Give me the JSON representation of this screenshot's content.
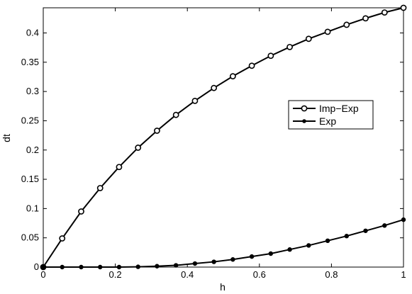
{
  "chart_data": {
    "type": "line",
    "xlabel": "h",
    "ylabel": "dt",
    "xlim": [
      0,
      1
    ],
    "ylim": [
      0,
      0.443
    ],
    "xticks": [
      "0",
      "0.2",
      "0.4",
      "0.6",
      "0.8",
      "1"
    ],
    "yticks": [
      "0",
      "0.05",
      "0.1",
      "0.15",
      "0.2",
      "0.25",
      "0.3",
      "0.35",
      "0.4"
    ],
    "legend_position": "right",
    "x": [
      0,
      0.0526,
      0.1053,
      0.1579,
      0.2105,
      0.2632,
      0.3158,
      0.3684,
      0.4211,
      0.4737,
      0.5263,
      0.5789,
      0.6316,
      0.6842,
      0.7368,
      0.7895,
      0.8421,
      0.8947,
      0.9474,
      1.0
    ],
    "series": [
      {
        "name": "Imp−Exp",
        "marker": "open-circle",
        "color": "#000000",
        "values": [
          0.0,
          0.049,
          0.095,
          0.135,
          0.171,
          0.204,
          0.233,
          0.26,
          0.284,
          0.306,
          0.326,
          0.344,
          0.361,
          0.376,
          0.39,
          0.402,
          0.414,
          0.425,
          0.435,
          0.443
        ]
      },
      {
        "name": "Exp",
        "marker": "filled-dot",
        "color": "#000000",
        "values": [
          0.0,
          0.0,
          0.0,
          0.0,
          0.0,
          0.0005,
          0.0015,
          0.003,
          0.006,
          0.009,
          0.013,
          0.018,
          0.023,
          0.03,
          0.037,
          0.045,
          0.053,
          0.062,
          0.071,
          0.081
        ]
      }
    ]
  }
}
